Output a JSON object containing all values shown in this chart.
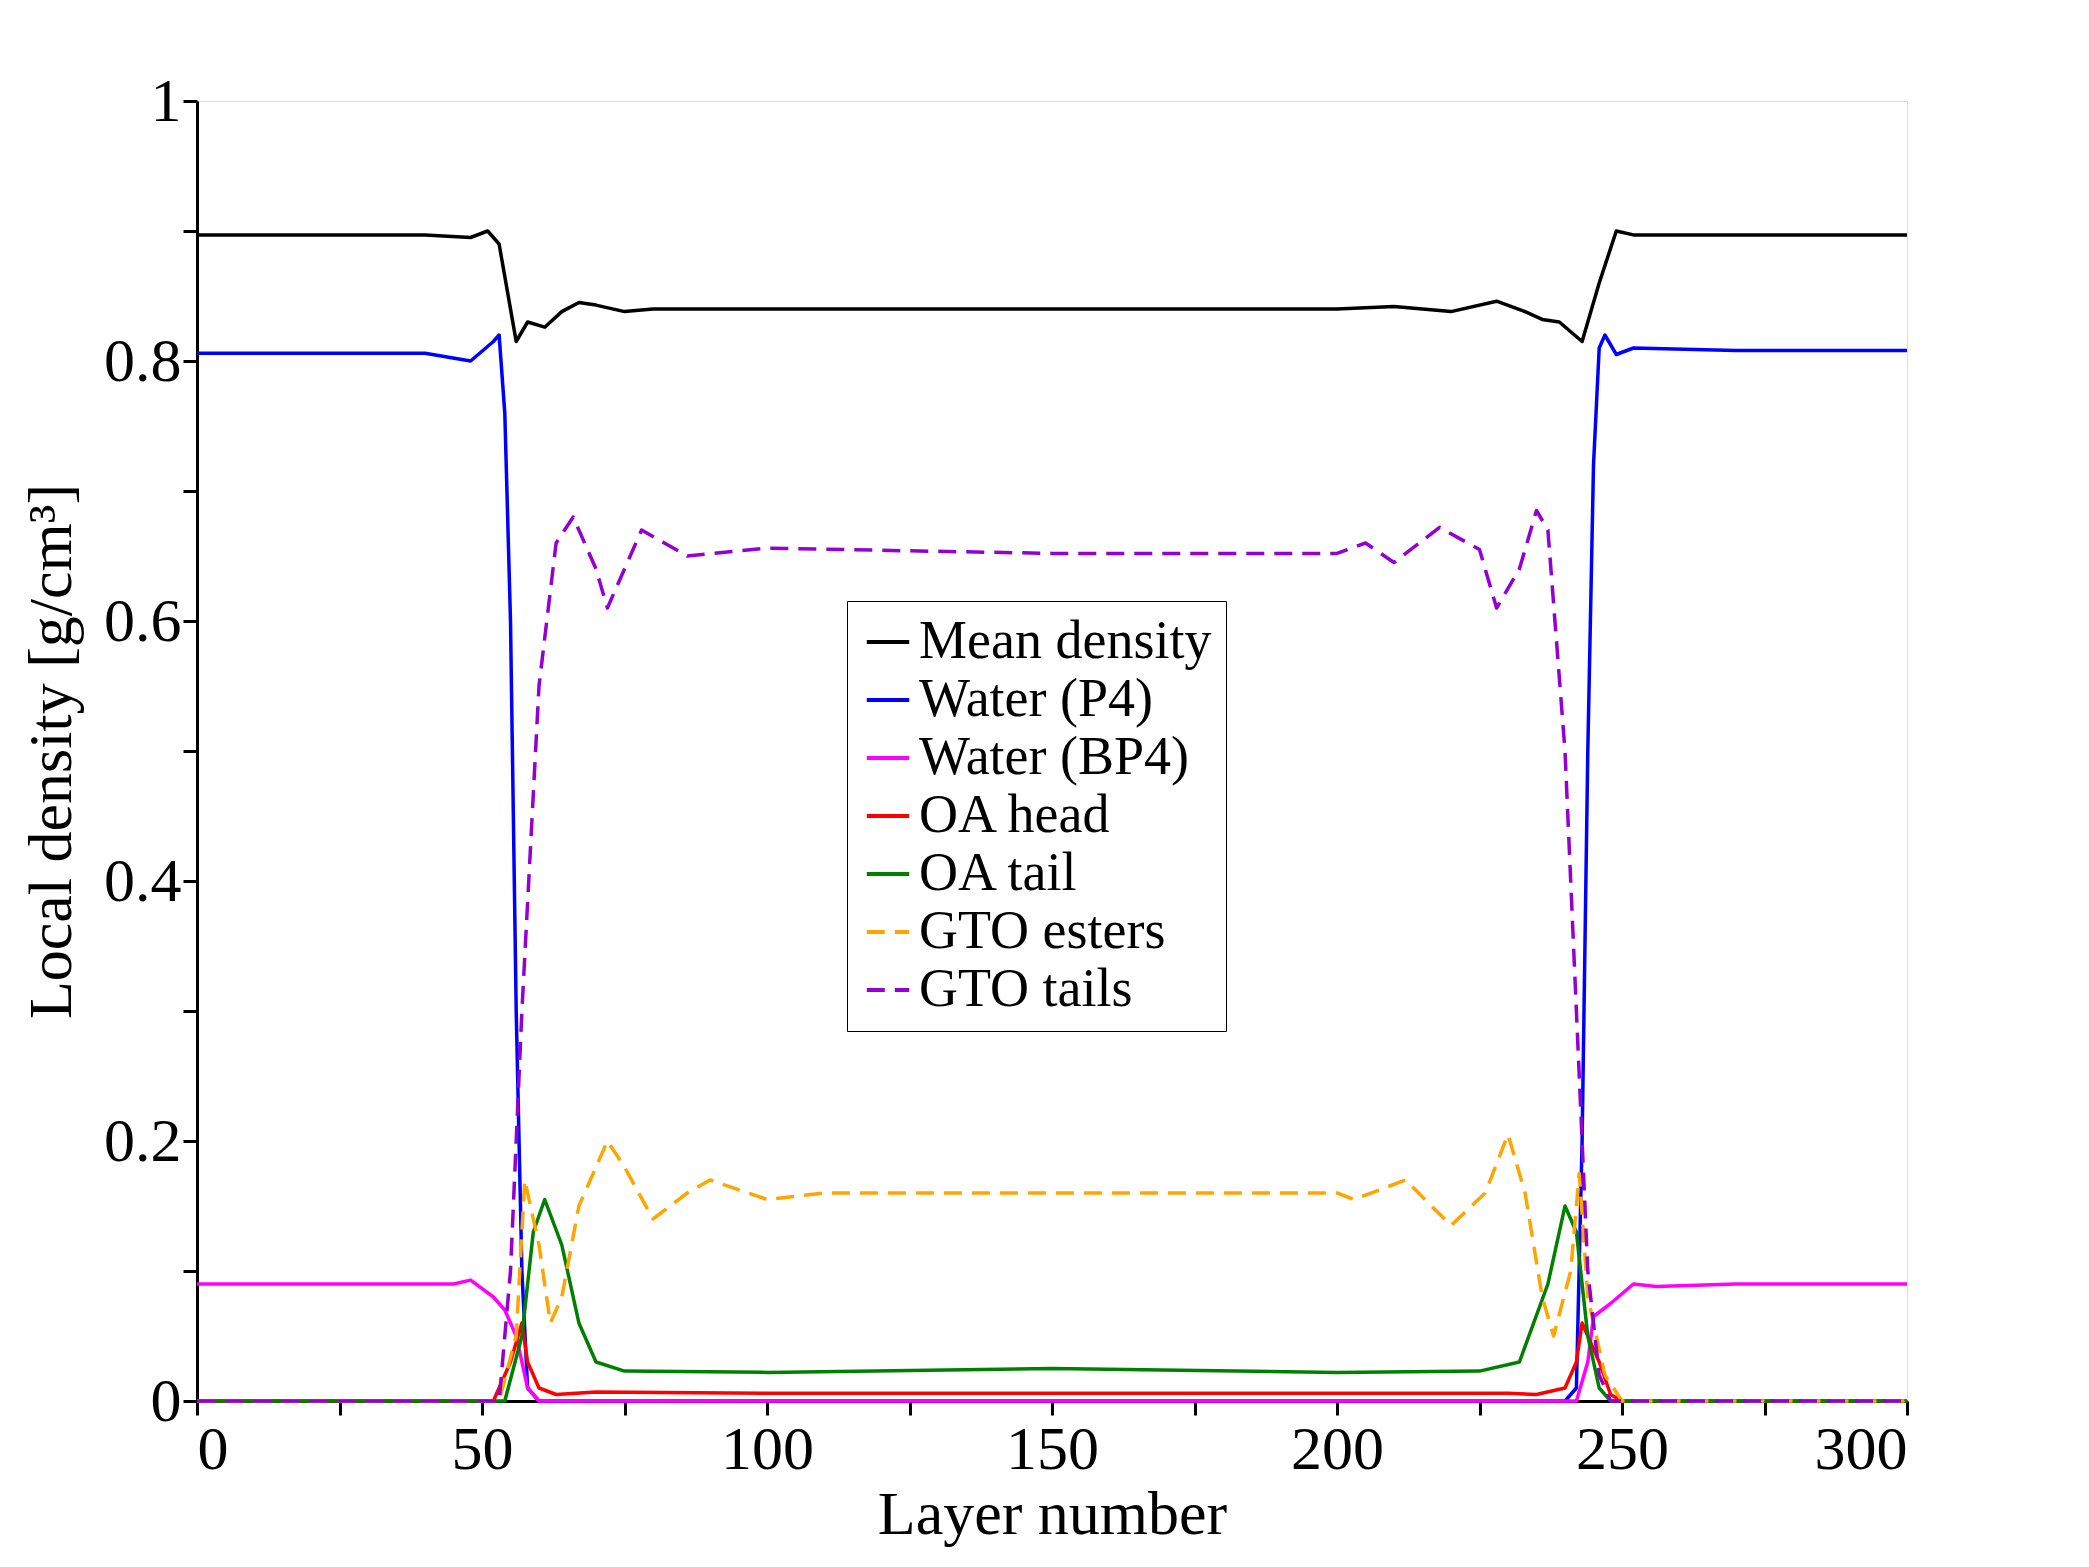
{
  "chart_data": {
    "type": "line",
    "xlabel": "Layer number",
    "ylabel": "Local density [g/cm³]",
    "xlim": [
      0,
      300
    ],
    "ylim": [
      0,
      1
    ],
    "xticks": [
      0,
      {
        "value": 25,
        "label": null
      },
      50,
      {
        "value": 75,
        "label": null
      },
      100,
      {
        "value": 125,
        "label": null
      },
      150,
      {
        "value": 175,
        "label": null
      },
      200,
      {
        "value": 225,
        "label": null
      },
      250,
      {
        "value": 275,
        "label": null
      },
      300
    ],
    "yticks": [
      0,
      {
        "value": 0.1,
        "label": null
      },
      0.2,
      {
        "value": 0.3,
        "label": null
      },
      0.4,
      {
        "value": 0.5,
        "label": null
      },
      0.6,
      {
        "value": 0.7,
        "label": null
      },
      0.8,
      {
        "value": 0.9,
        "label": null
      },
      1
    ],
    "grid": false,
    "legend": "center",
    "marker": "none",
    "series": [
      {
        "name": "Mean density",
        "color": "#000000",
        "line_style": "solid",
        "x": [
          0,
          20,
          40,
          48,
          51,
          53,
          56,
          58,
          61,
          64,
          67,
          70,
          75,
          80,
          100,
          150,
          200,
          210,
          220,
          228,
          233,
          236,
          239,
          243,
          246,
          249,
          252,
          270,
          300
        ],
        "values": [
          0.897,
          0.897,
          0.897,
          0.895,
          0.9,
          0.89,
          0.815,
          0.83,
          0.826,
          0.838,
          0.845,
          0.843,
          0.838,
          0.84,
          0.84,
          0.84,
          0.84,
          0.842,
          0.838,
          0.846,
          0.838,
          0.832,
          0.83,
          0.815,
          0.86,
          0.9,
          0.897,
          0.897,
          0.897
        ]
      },
      {
        "name": "Water (P4)",
        "color": "#0000ff",
        "line_style": "solid",
        "x": [
          0,
          20,
          40,
          48,
          52,
          53,
          54,
          55,
          56,
          57,
          58,
          60,
          100,
          150,
          200,
          240,
          242,
          243,
          244,
          245,
          246,
          247,
          249,
          252,
          270,
          300
        ],
        "values": [
          0.806,
          0.806,
          0.806,
          0.8,
          0.815,
          0.82,
          0.76,
          0.6,
          0.3,
          0.1,
          0.01,
          0,
          0,
          0,
          0,
          0,
          0.01,
          0.2,
          0.5,
          0.72,
          0.81,
          0.82,
          0.805,
          0.81,
          0.808,
          0.808
        ]
      },
      {
        "name": "Water (BP4)",
        "color": "#ff00ff",
        "line_style": "solid",
        "x": [
          0,
          20,
          45,
          48,
          52,
          54,
          56,
          58,
          60,
          100,
          150,
          200,
          242,
          244,
          245,
          248,
          252,
          256,
          270,
          300
        ],
        "values": [
          0.09,
          0.09,
          0.09,
          0.093,
          0.08,
          0.07,
          0.05,
          0.01,
          0,
          0,
          0,
          0,
          0,
          0.03,
          0.065,
          0.075,
          0.09,
          0.088,
          0.09,
          0.09
        ]
      },
      {
        "name": "OA head",
        "color": "#ff0000",
        "line_style": "solid",
        "x": [
          0,
          52,
          55,
          57,
          58,
          60,
          63,
          70,
          100,
          150,
          200,
          230,
          235,
          240,
          242,
          243,
          246,
          248,
          250,
          300
        ],
        "values": [
          0,
          0,
          0.03,
          0.06,
          0.03,
          0.01,
          0.005,
          0.007,
          0.006,
          0.006,
          0.006,
          0.006,
          0.005,
          0.01,
          0.03,
          0.06,
          0.03,
          0.005,
          0,
          0
        ]
      },
      {
        "name": "OA tail",
        "color": "#008000",
        "line_style": "solid",
        "x": [
          0,
          54,
          57,
          59,
          61,
          64,
          67,
          70,
          75,
          100,
          150,
          200,
          225,
          232,
          237,
          240,
          242,
          244,
          246,
          248,
          300
        ],
        "values": [
          0,
          0,
          0.05,
          0.13,
          0.155,
          0.12,
          0.06,
          0.03,
          0.023,
          0.022,
          0.025,
          0.022,
          0.023,
          0.03,
          0.09,
          0.15,
          0.13,
          0.05,
          0.01,
          0,
          0
        ]
      },
      {
        "name": "GTO esters",
        "color": "#ffa500",
        "line_style": "dashed",
        "x": [
          0,
          53,
          56,
          57.5,
          60,
          62,
          64,
          67,
          72,
          75,
          80,
          86,
          90,
          100,
          110,
          150,
          200,
          203,
          212,
          220,
          226,
          230,
          233,
          236,
          238,
          241,
          242.5,
          244,
          247,
          250,
          300
        ],
        "values": [
          0,
          0,
          0.05,
          0.17,
          0.12,
          0.06,
          0.08,
          0.15,
          0.2,
          0.18,
          0.14,
          0.16,
          0.17,
          0.155,
          0.16,
          0.16,
          0.16,
          0.155,
          0.17,
          0.135,
          0.16,
          0.205,
          0.16,
          0.08,
          0.05,
          0.1,
          0.175,
          0.08,
          0.02,
          0,
          0
        ]
      },
      {
        "name": "GTO tails",
        "color": "#9400d3",
        "line_style": "dashed",
        "x": [
          0,
          53,
          55,
          57,
          60,
          63,
          66,
          70,
          72,
          75,
          78,
          82,
          86,
          100,
          150,
          200,
          205,
          210,
          218,
          225,
          228,
          232,
          235,
          237,
          240,
          242,
          244,
          246,
          248,
          300
        ],
        "values": [
          0,
          0,
          0.1,
          0.3,
          0.55,
          0.66,
          0.68,
          0.64,
          0.61,
          0.64,
          0.67,
          0.66,
          0.65,
          0.656,
          0.652,
          0.652,
          0.66,
          0.645,
          0.672,
          0.655,
          0.61,
          0.64,
          0.685,
          0.67,
          0.5,
          0.3,
          0.1,
          0.02,
          0,
          0
        ]
      }
    ]
  }
}
